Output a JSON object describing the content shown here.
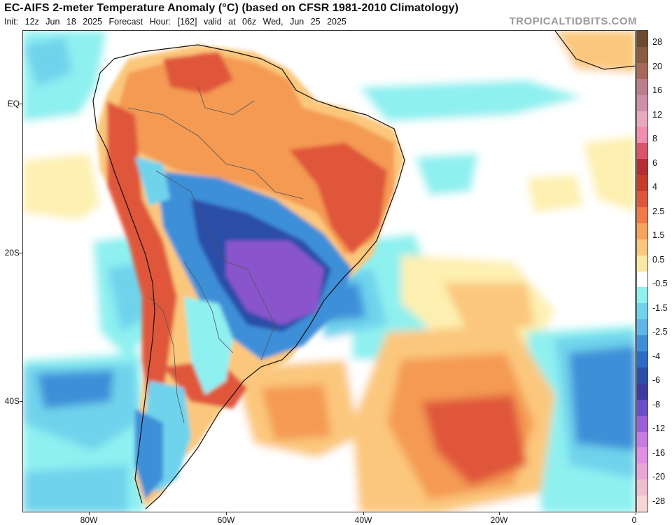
{
  "header": {
    "title": "EC-AIFS 2-meter Temperature Anomaly (°C) (based on CFSR 1981-2010 Climatology)",
    "subtitle": "Init: 12z Jun 18 2025   Forecast Hour: [162]   valid at 06z Wed, Jun 25 2025",
    "watermark": "TROPICALTIDBITS.COM"
  },
  "axes": {
    "lat_labels": [
      "EQ",
      "20S",
      "40S"
    ],
    "lon_labels": [
      "80W",
      "60W",
      "40W",
      "20W",
      "0"
    ]
  },
  "colorbar": {
    "labels": [
      "28",
      "20",
      "16",
      "12",
      "8",
      "6",
      "4",
      "2.5",
      "1.5",
      "0.5",
      "-0.5",
      "-1.5",
      "-2.5",
      "-4",
      "-6",
      "-8",
      "-12",
      "-16",
      "-20",
      "-28"
    ],
    "colors": [
      "#6b4a2e",
      "#8a5b3e",
      "#a8675a",
      "#b97f8a",
      "#cd90a8",
      "#e6a9c0",
      "#f08db0",
      "#d9536a",
      "#b52c34",
      "#c73b2a",
      "#e0563a",
      "#f07a48",
      "#f7a35c",
      "#fbc77c",
      "#fde7a4",
      "#ffffff",
      "#8ff0f0",
      "#6fd3ec",
      "#5fb6e8",
      "#3e8fd8",
      "#2b6cc4",
      "#2b4ea8",
      "#3d3aa0",
      "#6a4fc8",
      "#9a5fd8",
      "#c67ae4",
      "#e18ee4",
      "#e8a6d6",
      "#efbfd0",
      "#f7d5d5"
    ]
  },
  "map_colors": {
    "ocean_neutral": "#ffffff",
    "pale_yellow": "#fdf0b0",
    "light_orange": "#fbc77c",
    "orange": "#f49a52",
    "red_orange": "#e0563a",
    "cyan": "#8ff0f0",
    "light_blue": "#6fd3ec",
    "blue": "#3e8fd8",
    "dark_blue": "#2b4ea8",
    "purple": "#8a55cc"
  }
}
